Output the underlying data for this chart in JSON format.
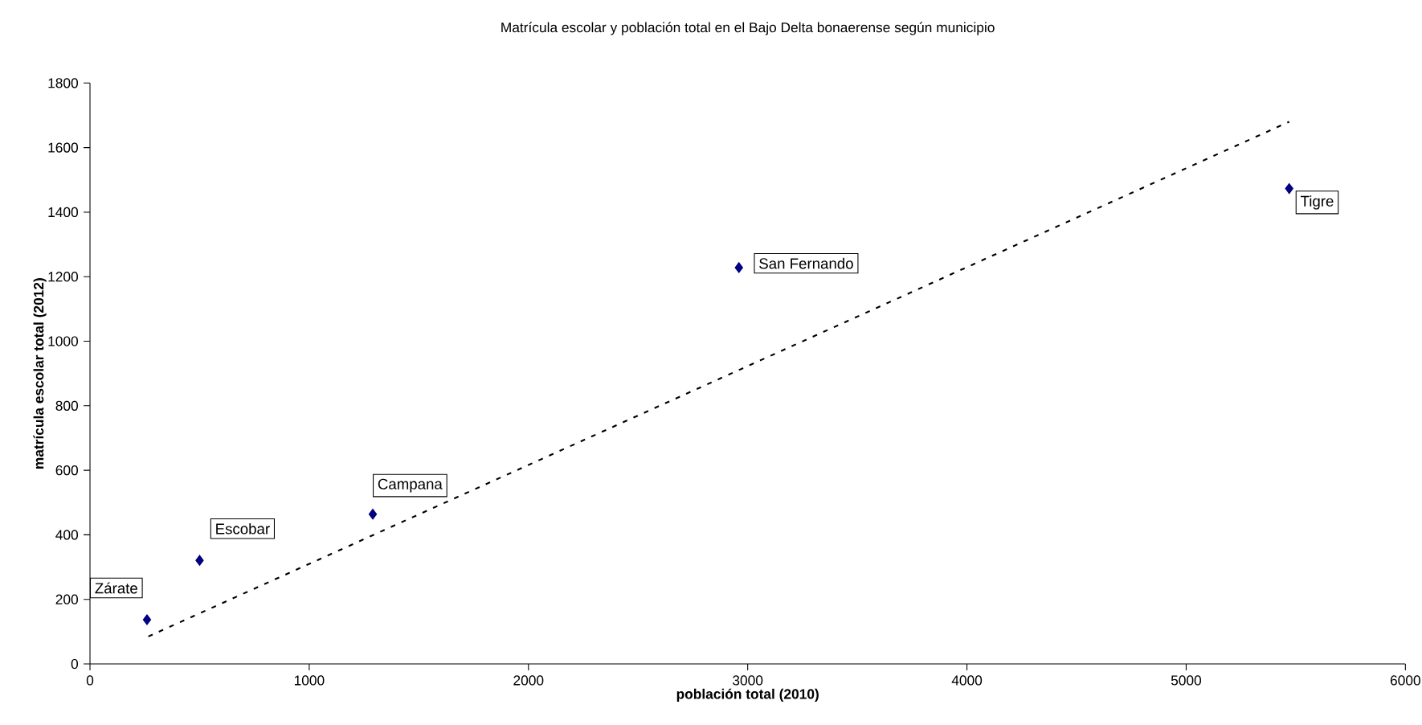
{
  "chart_data": {
    "type": "scatter",
    "title": "Matrícula escolar y población total en el Bajo Delta bonaerense según municipio",
    "xlabel": "población total (2010)",
    "ylabel": "matrícula escolar total (2012)",
    "xlim": [
      0,
      6000
    ],
    "ylim": [
      0,
      1800
    ],
    "xticks": [
      0,
      1000,
      2000,
      3000,
      4000,
      5000,
      6000
    ],
    "yticks": [
      0,
      200,
      400,
      600,
      800,
      1000,
      1200,
      1400,
      1600,
      1800
    ],
    "grid": false,
    "marker": "diamond",
    "series": [
      {
        "color": "#000080",
        "x": [
          260,
          500,
          1290,
          2960,
          5470
        ],
        "values": [
          137,
          321,
          464,
          1228,
          1473
        ]
      },
      {
        "type": "line",
        "color": "#000000",
        "line_style": "dashed",
        "marker": "none",
        "x": [
          266,
          5470
        ],
        "values": [
          85,
          1680
        ]
      }
    ],
    "annotations": [
      {
        "text": "Zárate",
        "x": 260,
        "y": 137
      },
      {
        "text": "Escobar",
        "x": 500,
        "y": 321
      },
      {
        "text": "Campana",
        "x": 1290,
        "y": 464
      },
      {
        "text": "San Fernando",
        "x": 2960,
        "y": 1228
      },
      {
        "text": "Tigre",
        "x": 5470,
        "y": 1473
      }
    ]
  }
}
